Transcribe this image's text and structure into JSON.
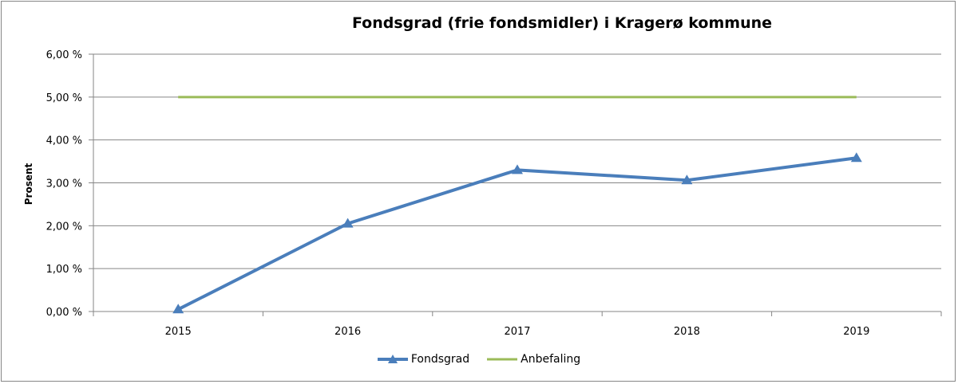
{
  "chart_data": {
    "type": "line",
    "title": "Fondsgrad (frie fondsmidler) i Kragerø kommune",
    "xlabel": "",
    "ylabel": "Prosent",
    "categories": [
      "2015",
      "2016",
      "2017",
      "2018",
      "2019"
    ],
    "ylim": [
      0,
      6
    ],
    "yticks": [
      0,
      1,
      2,
      3,
      4,
      5,
      6
    ],
    "ytick_labels": [
      "0,00 %",
      "1,00 %",
      "2,00 %",
      "3,00 %",
      "4,00 %",
      "5,00 %",
      "6,00 %"
    ],
    "grid": true,
    "legend_position": "bottom",
    "series": [
      {
        "name": "Fondsgrad",
        "values": [
          0.05,
          2.05,
          3.3,
          3.06,
          3.58
        ],
        "color": "#4a7ebb",
        "marker": "triangle"
      },
      {
        "name": "Anbefaling",
        "values": [
          5.0,
          5.0,
          5.0,
          5.0,
          5.0
        ],
        "color": "#9bbb59",
        "marker": "none"
      }
    ]
  }
}
